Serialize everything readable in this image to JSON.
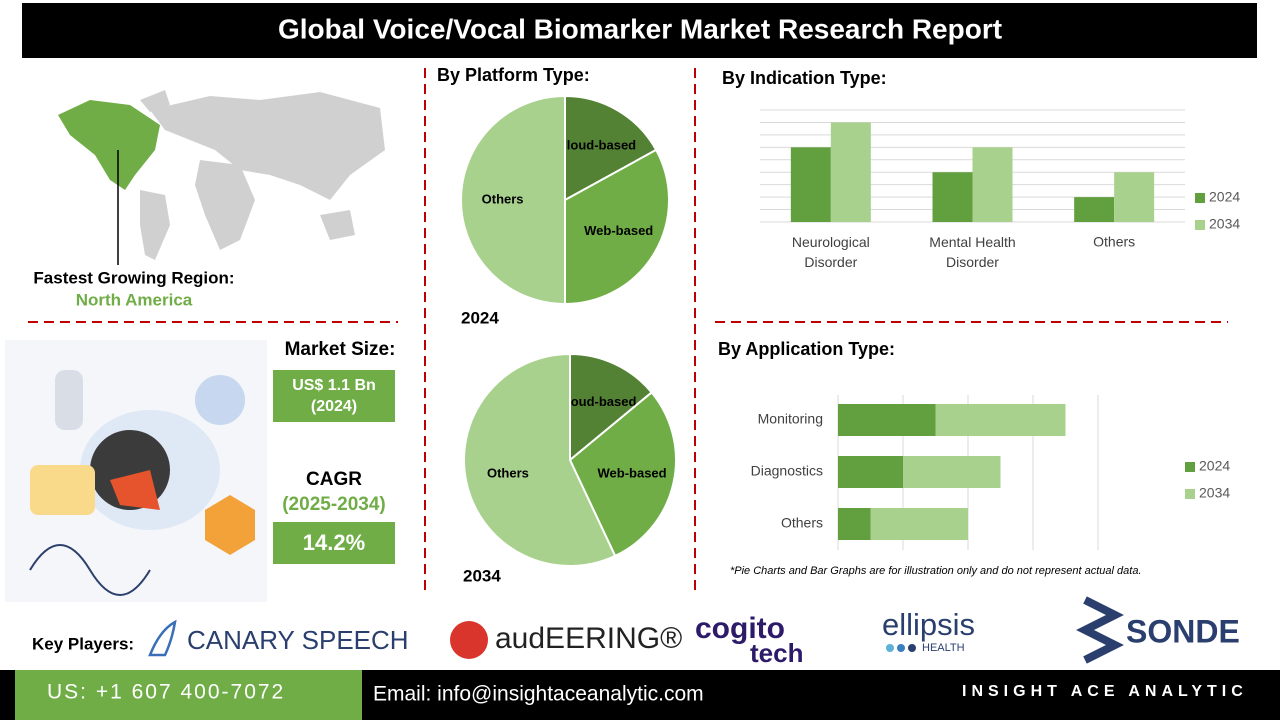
{
  "header": {
    "title": "Global Voice/Vocal Biomarker Market Research Report"
  },
  "region": {
    "label": "Fastest Growing Region:",
    "value": "North America"
  },
  "market_size": {
    "label": "Market Size:",
    "value": "US$ 1.1 Bn",
    "year": "(2024)"
  },
  "cagr": {
    "label": "CAGR",
    "period": "(2025-2034)",
    "value": "14.2%"
  },
  "chart_data": [
    {
      "type": "pie",
      "title": "By Platform Type:",
      "caption": "2024",
      "categories": [
        "Cloud-based",
        "Web-based",
        "Others"
      ],
      "values": [
        17,
        33,
        50
      ],
      "colors": [
        "#548235",
        "#70ad47",
        "#a9d18e"
      ]
    },
    {
      "type": "pie",
      "caption": "2034",
      "categories": [
        "Cloud-based",
        "Web-based",
        "Others"
      ],
      "values": [
        14,
        29,
        57
      ],
      "colors": [
        "#548235",
        "#70ad47",
        "#a9d18e"
      ]
    },
    {
      "type": "bar",
      "title": "By Indication Type:",
      "categories": [
        "Neurological Disorder",
        "Mental Health Disorder",
        "Others"
      ],
      "series": [
        {
          "name": "2024",
          "color": "#62a03f",
          "values": [
            6,
            4,
            2
          ]
        },
        {
          "name": "2034",
          "color": "#a9d18e",
          "values": [
            8,
            6,
            4
          ]
        }
      ],
      "ylim": [
        0,
        9
      ],
      "yticks": [
        0,
        1,
        2,
        3,
        4,
        5,
        6,
        7,
        8,
        9
      ],
      "grid": true,
      "legend": "right"
    },
    {
      "type": "stacked_barh",
      "title": "By Application Type:",
      "categories": [
        "Monitoring",
        "Diagnostics",
        "Others"
      ],
      "series": [
        {
          "name": "2024",
          "color": "#62a03f",
          "values": [
            1.5,
            1,
            0.5
          ]
        },
        {
          "name": "2034",
          "color": "#a9d18e",
          "values": [
            2,
            1.5,
            1.5
          ]
        }
      ],
      "xlim": [
        0,
        4
      ],
      "xticks": [
        0,
        1,
        2,
        3,
        4
      ],
      "grid": true,
      "legend": "right"
    }
  ],
  "note": "*Pie Charts and Bar Graphs are for illustration only and do not represent actual data.",
  "key_players": {
    "label": "Key Players:",
    "players": [
      {
        "name": "CANARY SPEECH"
      },
      {
        "name": "audEERING®"
      },
      {
        "name": "cogito",
        "sub": "tech"
      },
      {
        "name": "ellipsis",
        "sub": "HEALTH"
      },
      {
        "name": "SONDE"
      }
    ]
  },
  "footer": {
    "phone": "US: +1 607 400-7072",
    "email": "Email: info@insightaceanalytic.com",
    "brand": "INSIGHT ACE ANALYTIC"
  }
}
